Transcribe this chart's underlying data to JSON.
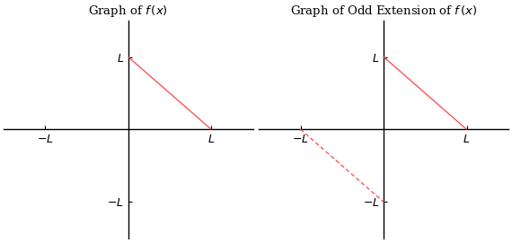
{
  "title_left": "Graph of $\\mathit{f}\\,(x)$",
  "title_right": "Graph of Odd Extension of $\\mathit{f}\\,(x)$",
  "line_color": "#ff4444",
  "axis_color": "#000000",
  "tick_label_color": "#000000",
  "background_color": "#ffffff",
  "L": 1,
  "xlim": [
    -1.5,
    1.5
  ],
  "ylim": [
    -1.5,
    1.5
  ],
  "title_fontsize": 9.5,
  "tick_fontsize": 9,
  "line_width": 0.9,
  "figsize": [
    5.7,
    2.7
  ],
  "dpi": 100
}
